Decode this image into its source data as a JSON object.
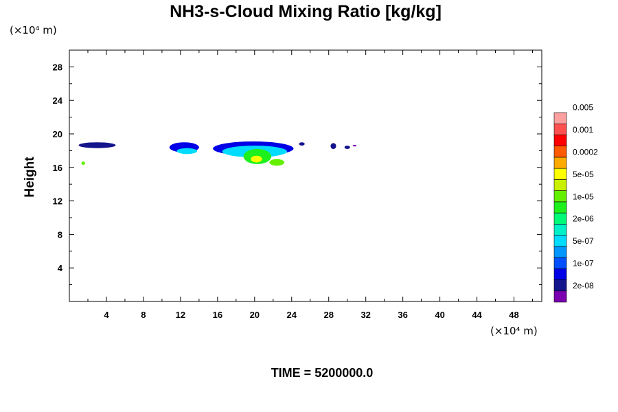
{
  "chart_data": {
    "type": "heatmap",
    "title": "NH3-s-Cloud Mixing Ratio [kg/kg]",
    "ylabel": "Height",
    "x_unit": "(×10⁴ m)",
    "y_unit": "(×10⁴ m)",
    "footer": "TIME = 5200000.0",
    "xlim": [
      0,
      51
    ],
    "ylim": [
      0,
      30
    ],
    "x_ticks": [
      4,
      8,
      12,
      16,
      20,
      24,
      28,
      32,
      36,
      40,
      44,
      48
    ],
    "y_ticks": [
      4,
      8,
      12,
      16,
      20,
      24,
      28
    ],
    "colorbar": {
      "colors": [
        "#7b00b0",
        "#14148c",
        "#0000e6",
        "#0050ff",
        "#0096ff",
        "#00dcff",
        "#00f0c8",
        "#00fa78",
        "#1ef01e",
        "#64f000",
        "#c8f000",
        "#ffff00",
        "#ffaa00",
        "#ff5a00",
        "#ff0000",
        "#ff5050",
        "#ffa0a0"
      ],
      "labels": [
        "2e-08",
        "1e-07",
        "5e-07",
        "2e-06",
        "1e-05",
        "5e-05",
        "0.0002",
        "0.001",
        "0.005"
      ]
    },
    "regions": [
      {
        "x": [
          1.0,
          5.0
        ],
        "y": [
          18.3,
          19.0
        ],
        "level": 1
      },
      {
        "x": [
          10.8,
          14.0
        ],
        "y": [
          17.8,
          19.0
        ],
        "level": 2
      },
      {
        "x": [
          11.6,
          13.8
        ],
        "y": [
          17.6,
          18.3
        ],
        "level": 5
      },
      {
        "x": [
          15.5,
          24.2
        ],
        "y": [
          17.4,
          19.1
        ],
        "level": 2
      },
      {
        "x": [
          16.5,
          23.5
        ],
        "y": [
          17.2,
          18.6
        ],
        "level": 5
      },
      {
        "x": [
          18.8,
          21.8
        ],
        "y": [
          16.4,
          18.2
        ],
        "level": 8
      },
      {
        "x": [
          19.6,
          20.8
        ],
        "y": [
          16.6,
          17.4
        ],
        "level": 11
      },
      {
        "x": [
          21.6,
          23.2
        ],
        "y": [
          16.2,
          17.0
        ],
        "level": 9
      },
      {
        "x": [
          1.3,
          1.7
        ],
        "y": [
          16.3,
          16.7
        ],
        "level": 9
      },
      {
        "x": [
          24.8,
          25.4
        ],
        "y": [
          18.6,
          19.0
        ],
        "level": 1
      },
      {
        "x": [
          28.2,
          28.8
        ],
        "y": [
          18.2,
          18.9
        ],
        "level": 1
      },
      {
        "x": [
          29.7,
          30.3
        ],
        "y": [
          18.2,
          18.6
        ],
        "level": 1
      },
      {
        "x": [
          30.6,
          31.0
        ],
        "y": [
          18.5,
          18.7
        ],
        "level": 0
      }
    ]
  }
}
